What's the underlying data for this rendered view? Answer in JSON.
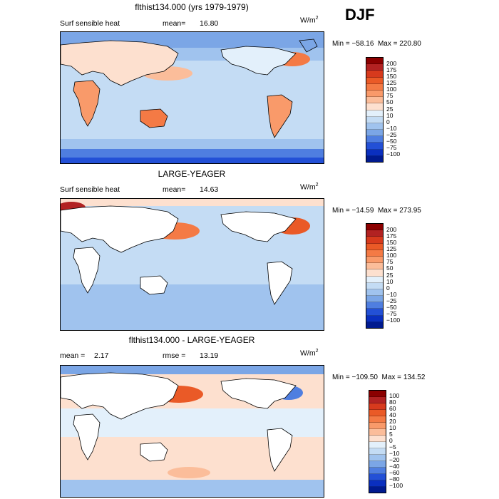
{
  "season": "DJF",
  "panels": [
    {
      "title": "flthist134.000 (yrs 1979-1979)",
      "left_label": "Surf sensible heat",
      "stat_label": "mean=",
      "stat_value": "16.80",
      "stat2_label": "",
      "stat2_value": "",
      "units": "W/m",
      "units_sup": "2",
      "min_label": "Min =",
      "min_value": "−58.16",
      "max_label": "Max =",
      "max_value": "220.80",
      "levels": [
        "200",
        "175",
        "150",
        "125",
        "100",
        "75",
        "50",
        "25",
        "10",
        "0",
        "−10",
        "−25",
        "−50",
        "−75",
        "−100"
      ],
      "colors": [
        "#8b0000",
        "#b22222",
        "#d73a1d",
        "#ea5a27",
        "#f47a45",
        "#f99a6a",
        "#fbbd9a",
        "#fde0cf",
        "#e3f0fb",
        "#c4dcf4",
        "#a0c3ee",
        "#7ba6e6",
        "#4f7ee0",
        "#2350d6",
        "#0a2fbf",
        "#001a8f"
      ]
    },
    {
      "title": "LARGE-YEAGER",
      "left_label": "Surf sensible heat",
      "stat_label": "mean=",
      "stat_value": "14.63",
      "stat2_label": "",
      "stat2_value": "",
      "units": "W/m",
      "units_sup": "2",
      "min_label": "Min =",
      "min_value": "−14.59",
      "max_label": "Max =",
      "max_value": "273.95",
      "levels": [
        "200",
        "175",
        "150",
        "125",
        "100",
        "75",
        "50",
        "25",
        "10",
        "0",
        "−10",
        "−25",
        "−50",
        "−75",
        "−100"
      ],
      "colors": [
        "#8b0000",
        "#b22222",
        "#d73a1d",
        "#ea5a27",
        "#f47a45",
        "#f99a6a",
        "#fbbd9a",
        "#fde0cf",
        "#e3f0fb",
        "#c4dcf4",
        "#a0c3ee",
        "#7ba6e6",
        "#4f7ee0",
        "#2350d6",
        "#0a2fbf",
        "#001a8f"
      ]
    },
    {
      "title": "flthist134.000 - LARGE-YEAGER",
      "left_label": "",
      "stat_label": "mean =",
      "stat_value": "2.17",
      "stat2_label": "rmse =",
      "stat2_value": "13.19",
      "units": "W/m",
      "units_sup": "2",
      "min_label": "Min =",
      "min_value": "−109.50",
      "max_label": "Max =",
      "max_value": "134.52",
      "levels": [
        "100",
        "80",
        "60",
        "40",
        "20",
        "10",
        "5",
        "0",
        "−5",
        "−10",
        "−20",
        "−40",
        "−60",
        "−80",
        "−100"
      ],
      "colors": [
        "#8b0000",
        "#b22222",
        "#d73a1d",
        "#ea5a27",
        "#f47a45",
        "#f99a6a",
        "#fbbd9a",
        "#fde0cf",
        "#e3f0fb",
        "#c4dcf4",
        "#a0c3ee",
        "#7ba6e6",
        "#4f7ee0",
        "#2350d6",
        "#0a2fbf",
        "#001a8f"
      ]
    }
  ]
}
